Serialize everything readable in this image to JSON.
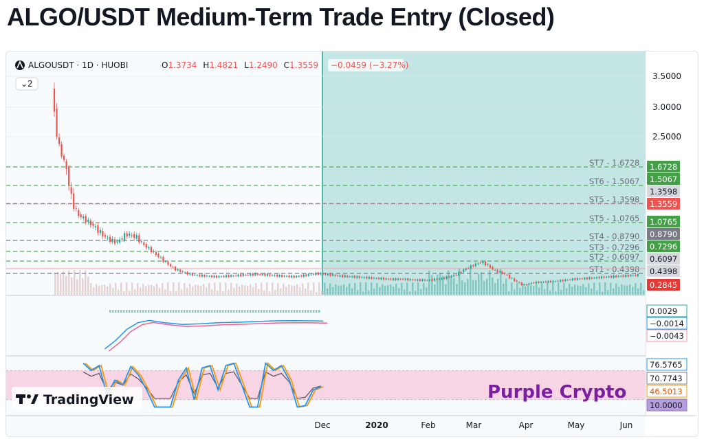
{
  "title": "ALGO/USDT Medium-Term Trade Entry (Closed)",
  "header": {
    "symbol": "ALGOUSDT · 1D · HUOBI",
    "o_label": "O",
    "o_value": "1.3734",
    "h_label": "H",
    "h_value": "1.4821",
    "l_label": "L",
    "l_value": "1.2490",
    "c_label": "C",
    "c_value": "1.3559",
    "change": "−0.0459 (−3.27%)",
    "indicator_count": "2"
  },
  "watermark": {
    "logo_text": "TradingView",
    "brand": "Purple Crypto"
  },
  "colors": {
    "up": "#26a69a",
    "down": "#ef5350",
    "target_line": "#4caf50",
    "stop_line": "#787b86",
    "zone_fill": "#b2dfdb",
    "rsi_band": "#f8c8dc",
    "stoch_k": "#2196f3",
    "stoch_d": "#ff9800",
    "purple": "#7b1fa2"
  },
  "price_axis": {
    "ticks": [
      "3.5000",
      "3.0000",
      "2.5000"
    ],
    "tags": [
      {
        "value": "1.6728",
        "bg": "#43a047",
        "fg": "#ffffff"
      },
      {
        "value": "1.5067",
        "bg": "#43a047",
        "fg": "#ffffff"
      },
      {
        "value": "1.3598",
        "bg": "#d6d8de",
        "fg": "#131722"
      },
      {
        "value": "1.3559",
        "bg": "#ef5350",
        "fg": "#ffffff"
      },
      {
        "value": "1.0765",
        "bg": "#43a047",
        "fg": "#ffffff"
      },
      {
        "value": "0.8790",
        "bg": "#787b86",
        "fg": "#ffffff"
      },
      {
        "value": "0.7296",
        "bg": "#43a047",
        "fg": "#ffffff"
      },
      {
        "value": "0.6097",
        "bg": "#d6d8de",
        "fg": "#131722"
      },
      {
        "value": "0.4398",
        "bg": "#d6d8de",
        "fg": "#131722"
      },
      {
        "value": "0.2845",
        "bg": "#e53935",
        "fg": "#ffffff"
      }
    ]
  },
  "levels": [
    {
      "label": "ST7 - 1.6728",
      "type": "target"
    },
    {
      "label": "ST6 - 1.5067",
      "type": "target"
    },
    {
      "label": "ST5 - 1.3598",
      "type": "stop"
    },
    {
      "label": "ST5 - 1.0765",
      "type": "target"
    },
    {
      "label": "ST4 - 0.8790",
      "type": "stop"
    },
    {
      "label": "ST3 - 0.7296",
      "type": "target"
    },
    {
      "label": "ST2 - 0.6097",
      "type": "target"
    },
    {
      "label": "ST1 - 0.4398",
      "type": "stop"
    }
  ],
  "macd_axis": {
    "tags": [
      {
        "value": "0.0029",
        "border": "#26a69a",
        "fg": "#131722"
      },
      {
        "value": "−0.0014",
        "border": "#2196f3",
        "fg": "#131722"
      },
      {
        "value": "−0.0043",
        "border": "#f48fb1",
        "fg": "#131722"
      }
    ]
  },
  "stoch_axis": {
    "tags": [
      {
        "value": "76.5765",
        "border": "#2196f3",
        "bg": "#ffffff",
        "fg": "#131722"
      },
      {
        "value": "70.7743",
        "border": "#787b86",
        "bg": "#ffffff",
        "fg": "#131722"
      },
      {
        "value": "46.5013",
        "border": "#ff9800",
        "bg": "#ffffff",
        "fg": "#e65100"
      },
      {
        "value": "10.0000",
        "border": "#9575cd",
        "bg": "#b39ddb",
        "fg": "#131722"
      }
    ]
  },
  "time_axis": [
    "Dec",
    "2020",
    "Feb",
    "Mar",
    "Apr",
    "May",
    "Jun"
  ],
  "chart_data": {
    "type": "candlestick",
    "symbol": "ALGOUSDT",
    "timeframe": "1D",
    "exchange": "HUOBI",
    "ylim": [
      0.28,
      3.6
    ],
    "y_ticks": [
      2.5,
      3.0,
      3.5
    ],
    "ohlc_last": {
      "open": 1.3734,
      "high": 1.4821,
      "low": 1.249,
      "close": 1.3559
    },
    "targets": [
      0.6097,
      0.7296,
      1.0765,
      1.5067,
      1.6728
    ],
    "stops": [
      0.4398,
      0.879,
      1.3598
    ],
    "price_path": [
      [
        0,
        3.3
      ],
      [
        4,
        2.3
      ],
      [
        8,
        1.75
      ],
      [
        12,
        1.4
      ],
      [
        16,
        1.2
      ],
      [
        22,
        1.1
      ],
      [
        28,
        1.0
      ],
      [
        34,
        0.9
      ],
      [
        40,
        0.85
      ],
      [
        46,
        0.95
      ],
      [
        52,
        0.92
      ],
      [
        58,
        0.8
      ],
      [
        64,
        0.7
      ],
      [
        70,
        0.6
      ],
      [
        76,
        0.5
      ],
      [
        82,
        0.45
      ],
      [
        88,
        0.42
      ],
      [
        95,
        0.41
      ],
      [
        102,
        0.4
      ],
      [
        110,
        0.41
      ],
      [
        118,
        0.42
      ],
      [
        126,
        0.43
      ],
      [
        134,
        0.42
      ],
      [
        142,
        0.41
      ],
      [
        150,
        0.4
      ],
      [
        158,
        0.42
      ],
      [
        164,
        0.44
      ],
      [
        170,
        0.43
      ],
      [
        178,
        0.41
      ],
      [
        186,
        0.4
      ],
      [
        194,
        0.39
      ],
      [
        202,
        0.38
      ],
      [
        210,
        0.37
      ],
      [
        218,
        0.37
      ],
      [
        226,
        0.36
      ],
      [
        234,
        0.36
      ],
      [
        242,
        0.38
      ],
      [
        250,
        0.42
      ],
      [
        256,
        0.5
      ],
      [
        262,
        0.56
      ],
      [
        266,
        0.6
      ],
      [
        270,
        0.55
      ],
      [
        274,
        0.48
      ],
      [
        280,
        0.44
      ],
      [
        286,
        0.36
      ],
      [
        292,
        0.3
      ],
      [
        298,
        0.33
      ],
      [
        306,
        0.34
      ],
      [
        314,
        0.35
      ],
      [
        322,
        0.37
      ],
      [
        330,
        0.38
      ],
      [
        338,
        0.39
      ],
      [
        346,
        0.4
      ],
      [
        354,
        0.41
      ],
      [
        362,
        0.42
      ]
    ],
    "macd": [
      [
        28,
        -0.01
      ],
      [
        34,
        -0.006
      ],
      [
        40,
        -0.001
      ],
      [
        46,
        0.002
      ],
      [
        52,
        0.003
      ],
      [
        60,
        0.002
      ],
      [
        70,
        0.0012
      ],
      [
        80,
        0.0015
      ],
      [
        90,
        0.002
      ],
      [
        100,
        0.0022
      ],
      [
        110,
        0.0025
      ],
      [
        120,
        0.0028
      ],
      [
        130,
        0.0029
      ],
      [
        140,
        0.0028
      ],
      [
        146,
        0.0027
      ]
    ],
    "stoch_rsi": [
      [
        0,
        95
      ],
      [
        4,
        80
      ],
      [
        8,
        90
      ],
      [
        12,
        30
      ],
      [
        16,
        60
      ],
      [
        20,
        50
      ],
      [
        24,
        88
      ],
      [
        28,
        70
      ],
      [
        32,
        40
      ],
      [
        36,
        5
      ],
      [
        40,
        5
      ],
      [
        44,
        5
      ],
      [
        48,
        60
      ],
      [
        52,
        85
      ],
      [
        56,
        20
      ],
      [
        60,
        85
      ],
      [
        64,
        90
      ],
      [
        68,
        40
      ],
      [
        72,
        90
      ],
      [
        76,
        95
      ],
      [
        80,
        50
      ],
      [
        84,
        5
      ],
      [
        88,
        5
      ],
      [
        92,
        95
      ],
      [
        96,
        80
      ],
      [
        100,
        90
      ],
      [
        104,
        60
      ],
      [
        108,
        5
      ],
      [
        112,
        8
      ],
      [
        116,
        40
      ],
      [
        120,
        46.5
      ]
    ],
    "stoch_bands": [
      20,
      80
    ]
  }
}
